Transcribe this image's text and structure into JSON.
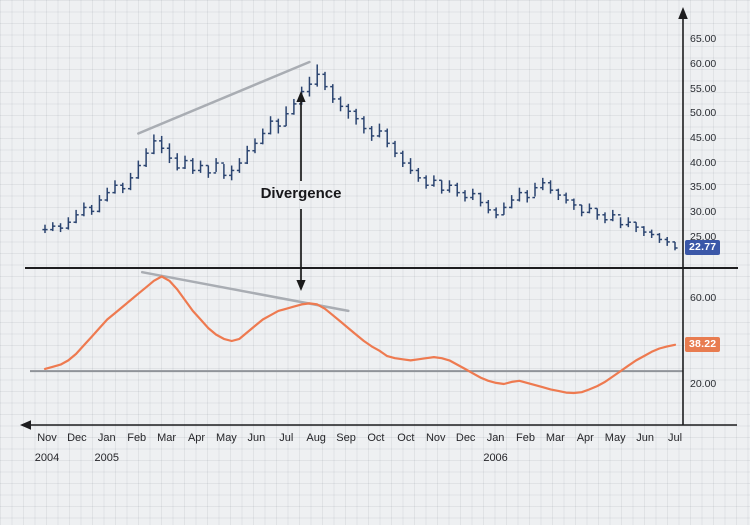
{
  "annotations": {
    "divergence_label": "Divergence"
  },
  "badges": {
    "price": "22.77",
    "indicator": "38.22"
  },
  "colors": {
    "background": "#eef0f2",
    "grid": "#d9dce0",
    "price_bars": "#2b4470",
    "indicator_line": "#ee7a50",
    "trendline": "#a9adb3",
    "divider": "#1d1d1f",
    "baseline": "#8f9399",
    "axis": "#1d1d1f",
    "annotation_arrow": "#1b1b1b",
    "price_badge_bg": "#3a57a8",
    "indicator_badge_bg": "#e87c50",
    "tick_text": "#2a2d33"
  },
  "chart_data": {
    "type": "bar",
    "title": "",
    "xlabel": "",
    "ylabel": "",
    "x": {
      "tick_labels": [
        "Nov",
        "Dec",
        "Jan",
        "Feb",
        "Mar",
        "Apr",
        "May",
        "Jun",
        "Jul",
        "Aug",
        "Sep",
        "Oct",
        "Oct",
        "Nov",
        "Dec",
        "Jan",
        "Feb",
        "Mar",
        "Apr",
        "May",
        "Jun",
        "Jul"
      ],
      "year_labels": [
        {
          "label": "2004",
          "tick_index": 0
        },
        {
          "label": "2005",
          "tick_index": 2
        },
        {
          "label": "2006",
          "tick_index": 15
        }
      ]
    },
    "panels": [
      {
        "name": "price",
        "type": "ohlc-bar",
        "ylim": [
          22,
          66
        ],
        "yticks": [
          65,
          60,
          55,
          50,
          45,
          40,
          35,
          30,
          25
        ],
        "ytick_labels": [
          "65.00",
          "60.00",
          "55.00",
          "50.00",
          "45.00",
          "40.00",
          "35.00",
          "30.00",
          "25.00"
        ],
        "last_value": 22.77,
        "bars_hlc": [
          [
            27.5,
            25.8,
            26.5
          ],
          [
            28.0,
            26.2,
            27.2
          ],
          [
            27.8,
            26.0,
            26.8
          ],
          [
            29.0,
            26.5,
            28.0
          ],
          [
            30.5,
            27.8,
            29.5
          ],
          [
            32.0,
            29.2,
            31.0
          ],
          [
            31.5,
            29.5,
            30.2
          ],
          [
            33.5,
            30.0,
            32.5
          ],
          [
            35.0,
            32.2,
            34.0
          ],
          [
            36.5,
            33.8,
            35.5
          ],
          [
            36.0,
            33.9,
            34.8
          ],
          [
            38.0,
            34.5,
            37.0
          ],
          [
            40.5,
            36.8,
            39.5
          ],
          [
            43.0,
            39.2,
            42.0
          ],
          [
            45.8,
            41.8,
            44.5
          ],
          [
            45.5,
            42.0,
            43.0
          ],
          [
            44.0,
            40.0,
            41.0
          ],
          [
            42.0,
            38.5,
            39.0
          ],
          [
            41.5,
            38.8,
            40.5
          ],
          [
            41.0,
            37.8,
            38.5
          ],
          [
            40.5,
            38.0,
            39.5
          ],
          [
            39.5,
            37.0,
            38.0
          ],
          [
            41.0,
            38.2,
            40.0
          ],
          [
            39.8,
            36.8,
            37.5
          ],
          [
            39.5,
            36.5,
            38.5
          ],
          [
            41.0,
            38.0,
            40.0
          ],
          [
            43.5,
            39.8,
            42.5
          ],
          [
            45.0,
            42.0,
            44.0
          ],
          [
            47.0,
            43.8,
            46.0
          ],
          [
            49.5,
            45.8,
            48.5
          ],
          [
            49.0,
            46.0,
            47.5
          ],
          [
            51.5,
            47.5,
            50.0
          ],
          [
            53.0,
            49.8,
            52.0
          ],
          [
            55.5,
            51.8,
            54.5
          ],
          [
            57.5,
            53.5,
            56.0
          ],
          [
            60.0,
            55.5,
            58.0
          ],
          [
            58.5,
            54.8,
            55.5
          ],
          [
            56.0,
            52.2,
            53.0
          ],
          [
            53.5,
            50.5,
            51.5
          ],
          [
            52.0,
            49.0,
            50.5
          ],
          [
            51.0,
            47.8,
            49.0
          ],
          [
            49.5,
            46.0,
            47.0
          ],
          [
            47.5,
            44.5,
            45.5
          ],
          [
            48.0,
            45.2,
            46.5
          ],
          [
            47.0,
            43.2,
            44.0
          ],
          [
            44.5,
            41.2,
            42.0
          ],
          [
            42.5,
            39.2,
            40.0
          ],
          [
            41.0,
            37.8,
            38.5
          ],
          [
            39.0,
            36.2,
            37.0
          ],
          [
            37.5,
            34.8,
            35.5
          ],
          [
            37.5,
            35.2,
            36.5
          ],
          [
            36.5,
            33.8,
            34.5
          ],
          [
            36.5,
            34.0,
            35.5
          ],
          [
            36.0,
            33.2,
            34.0
          ],
          [
            34.5,
            32.2,
            33.0
          ],
          [
            34.8,
            32.5,
            33.8
          ],
          [
            34.0,
            31.2,
            32.0
          ],
          [
            32.5,
            29.8,
            30.5
          ],
          [
            31.0,
            28.8,
            29.5
          ],
          [
            32.0,
            29.5,
            31.0
          ],
          [
            33.5,
            30.8,
            32.5
          ],
          [
            35.0,
            32.2,
            34.0
          ],
          [
            34.5,
            32.0,
            33.0
          ],
          [
            36.0,
            33.2,
            35.0
          ],
          [
            37.0,
            34.5,
            36.0
          ],
          [
            36.5,
            33.8,
            34.5
          ],
          [
            34.8,
            32.5,
            33.5
          ],
          [
            34.0,
            31.8,
            32.5
          ],
          [
            32.8,
            30.5,
            31.5
          ],
          [
            31.5,
            29.2,
            30.0
          ],
          [
            31.8,
            29.8,
            30.8
          ],
          [
            30.8,
            28.5,
            29.5
          ],
          [
            30.0,
            27.8,
            28.5
          ],
          [
            30.5,
            28.2,
            29.5
          ],
          [
            29.0,
            26.8,
            27.5
          ],
          [
            29.0,
            27.0,
            28.0
          ],
          [
            28.0,
            26.0,
            27.0
          ],
          [
            27.2,
            25.2,
            26.0
          ],
          [
            26.5,
            24.8,
            25.5
          ],
          [
            25.8,
            23.8,
            24.5
          ],
          [
            25.0,
            23.2,
            24.0
          ],
          [
            24.0,
            22.3,
            22.77
          ]
        ]
      },
      {
        "name": "indicator",
        "type": "line",
        "ylim": [
          10,
          74
        ],
        "yticks": [
          60,
          20
        ],
        "ytick_labels": [
          "60.00",
          "20.00"
        ],
        "baseline_level": 26,
        "last_value": 38.22,
        "values": [
          27,
          28,
          29,
          31,
          34,
          38,
          42,
          46,
          50,
          53,
          56,
          59,
          62,
          65,
          68,
          70,
          68,
          64,
          59,
          54,
          50,
          46,
          43,
          41,
          40,
          41,
          44,
          47,
          50,
          52,
          54,
          55,
          56,
          57,
          57.5,
          57,
          55,
          52,
          49,
          46,
          43,
          40,
          37.5,
          35.5,
          33,
          32,
          31.5,
          31,
          31.5,
          32,
          32.5,
          32,
          31,
          29,
          27,
          25,
          23,
          21.5,
          20.5,
          20,
          21,
          21.5,
          20.5,
          19.5,
          18.5,
          17.5,
          16.8,
          16,
          15.8,
          16.2,
          17.5,
          19,
          21,
          23.5,
          26,
          28.5,
          31,
          33,
          35,
          36.5,
          37.5,
          38.22
        ]
      }
    ],
    "trendlines": [
      {
        "panel": "price",
        "from": [
          12,
          46
        ],
        "to": [
          34,
          60.5
        ]
      },
      {
        "panel": "indicator",
        "from": [
          12.5,
          72
        ],
        "to": [
          39,
          54
        ]
      }
    ],
    "legend": null
  }
}
